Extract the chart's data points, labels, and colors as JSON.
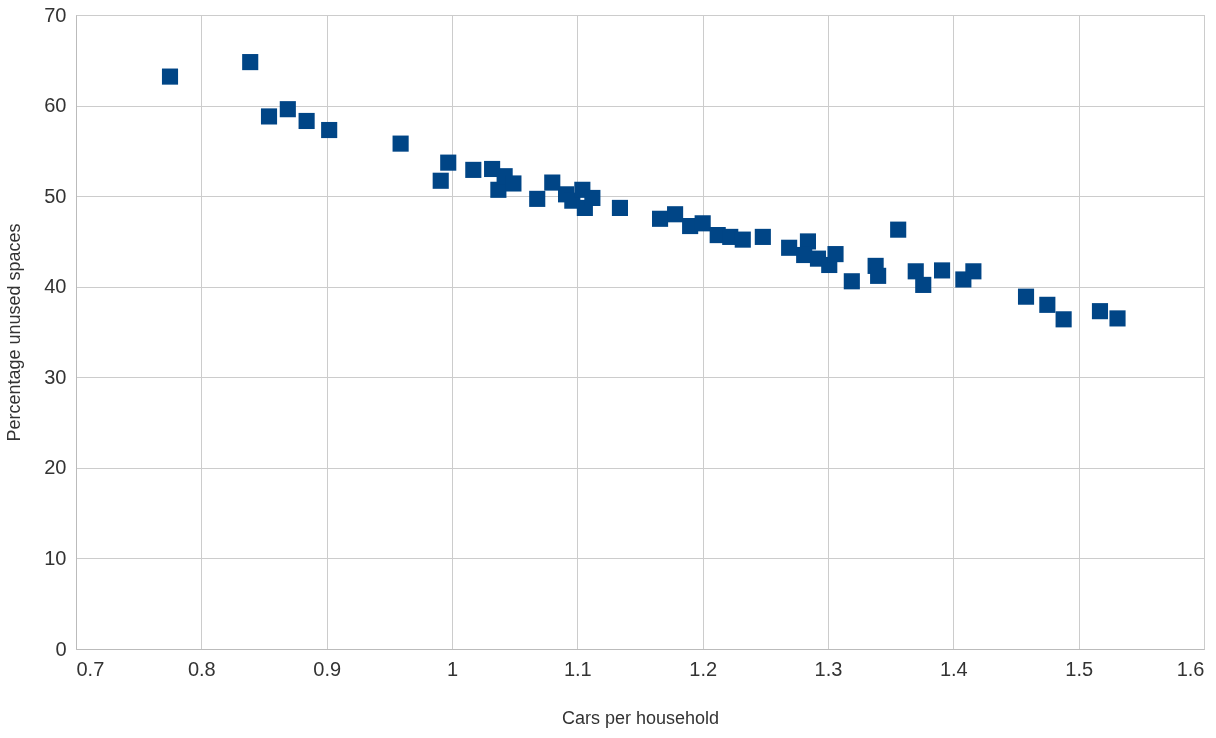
{
  "chart_data": {
    "type": "scatter",
    "xlabel": "Cars per household",
    "ylabel": "Percentage unused spaces",
    "x": [
      0.775,
      0.839,
      0.854,
      0.869,
      0.884,
      0.902,
      0.959,
      0.991,
      0.997,
      1.017,
      1.032,
      1.037,
      1.042,
      1.049,
      1.068,
      1.08,
      1.091,
      1.096,
      1.104,
      1.106,
      1.112,
      1.134,
      1.166,
      1.178,
      1.19,
      1.2,
      1.212,
      1.222,
      1.232,
      1.248,
      1.269,
      1.284,
      1.281,
      1.292,
      1.301,
      1.306,
      1.319,
      1.338,
      1.34,
      1.356,
      1.37,
      1.376,
      1.391,
      1.408,
      1.416,
      1.458,
      1.475,
      1.488,
      1.517,
      1.531
    ],
    "series": [
      {
        "color": "#004586",
        "values": [
          63.2,
          64.8,
          58.8,
          59.6,
          58.3,
          57.3,
          55.8,
          51.7,
          53.7,
          52.9,
          53.0,
          50.7,
          52.2,
          51.4,
          49.7,
          51.5,
          50.2,
          49.5,
          50.7,
          48.7,
          49.8,
          48.7,
          47.5,
          48.0,
          46.7,
          47.0,
          45.7,
          45.5,
          45.2,
          45.5,
          44.3,
          45.0,
          43.5,
          43.1,
          42.4,
          43.6,
          40.6,
          42.3,
          41.2,
          46.3,
          41.7,
          40.2,
          41.8,
          40.8,
          41.7,
          38.9,
          38.0,
          36.4,
          37.3,
          36.5
        ]
      }
    ],
    "xlim": [
      0.7,
      1.6
    ],
    "xticks": [
      0.7,
      0.8,
      0.9,
      1,
      1.1,
      1.2,
      1.3,
      1.4,
      1.5,
      1.6
    ],
    "ylim": [
      0,
      70
    ],
    "yticks": [
      0,
      10,
      20,
      30,
      40,
      50,
      60,
      70
    ],
    "grid": true,
    "marker": "square"
  }
}
